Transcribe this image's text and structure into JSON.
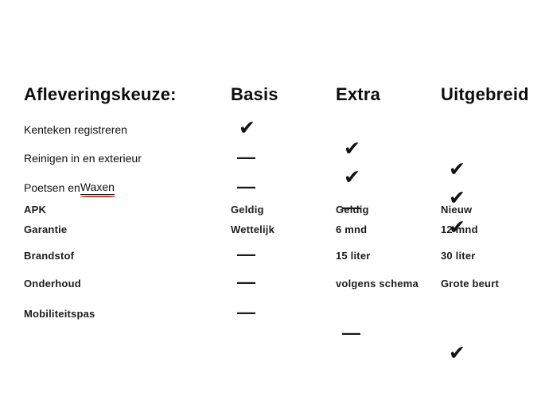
{
  "colors": {
    "background": "#ffffff",
    "text": "#111111",
    "spellcheck_underline": "#cf3a2e"
  },
  "header": {
    "feature_column_label": "Afleveringskeuze:",
    "columns": [
      "Basis",
      "Extra",
      "Uitgebreid"
    ]
  },
  "rows": [
    {
      "label": "Kenteken registreren",
      "cells": [
        {
          "type": "check",
          "glyph": "✔"
        },
        {
          "type": "check",
          "glyph": "✔"
        },
        {
          "type": "check",
          "glyph": "✔"
        }
      ]
    },
    {
      "label": "Reinigen in en exterieur",
      "cells": [
        {
          "type": "dash",
          "glyph": "—"
        },
        {
          "type": "check",
          "glyph": "✔"
        },
        {
          "type": "check",
          "glyph": "✔"
        }
      ]
    },
    {
      "label_prefix": "Poetsen en ",
      "label_underlined": "Waxen",
      "cells": [
        {
          "type": "dash",
          "glyph": "—"
        },
        {
          "type": "dash",
          "glyph": "—"
        },
        {
          "type": "check",
          "glyph": "✔"
        }
      ]
    },
    {
      "label": "APK",
      "cells": [
        {
          "type": "text",
          "glyph": "Geldig"
        },
        {
          "type": "text",
          "glyph": "Geldig"
        },
        {
          "type": "text",
          "glyph": "Nieuw"
        }
      ]
    },
    {
      "label": "Garantie",
      "cells": [
        {
          "type": "text",
          "glyph": "Wettelijk"
        },
        {
          "type": "text",
          "glyph": "6 mnd"
        },
        {
          "type": "text",
          "glyph": "12 mnd"
        }
      ]
    },
    {
      "label": "Brandstof",
      "cells": [
        {
          "type": "dash",
          "glyph": "—"
        },
        {
          "type": "text",
          "glyph": "15 liter"
        },
        {
          "type": "text",
          "glyph": "30 liter"
        }
      ]
    },
    {
      "label": "Onderhoud",
      "cells": [
        {
          "type": "dash",
          "glyph": "—"
        },
        {
          "type": "text",
          "glyph": "volgens schema"
        },
        {
          "type": "text",
          "glyph": "Grote beurt"
        }
      ]
    },
    {
      "label": "Mobiliteitspas",
      "cells": [
        {
          "type": "dash",
          "glyph": "—"
        },
        {
          "type": "dash",
          "glyph": "—"
        },
        {
          "type": "check",
          "glyph": "✔"
        }
      ]
    }
  ]
}
